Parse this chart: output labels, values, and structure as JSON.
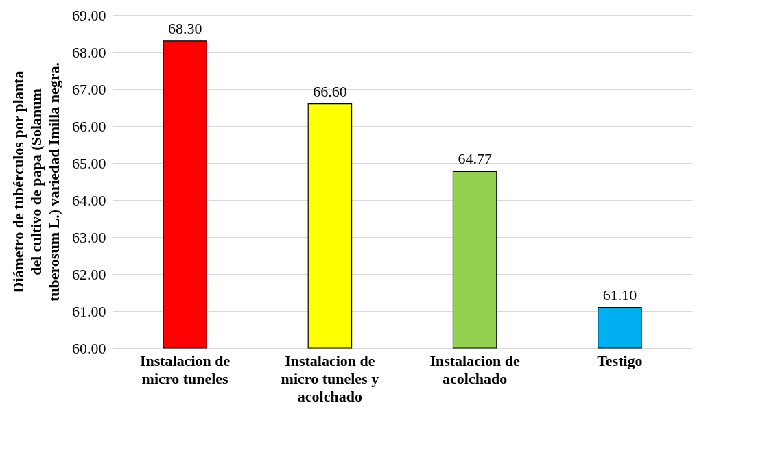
{
  "chart_data": {
    "type": "bar",
    "ylabel": "Diámetro de tubérculos por planta del cultivo de papa (Solanum tuberosum L.) variedad Imilla negra.",
    "categories": [
      "Instalacion de micro tuneles",
      "Instalacion de micro tuneles y acolchado",
      "Instalacion de acolchado",
      "Testigo"
    ],
    "values": [
      68.3,
      66.6,
      64.77,
      61.1
    ],
    "colors": [
      "#ff0000",
      "#ffff00",
      "#92d050",
      "#00b0f0"
    ],
    "value_labels": [
      "68.30",
      "66.60",
      "64.77",
      "61.10"
    ],
    "ylim": [
      60,
      69
    ],
    "yticks": [
      {
        "value": 60,
        "label": "60.00"
      },
      {
        "value": 61,
        "label": "61.00"
      },
      {
        "value": 62,
        "label": "62.00"
      },
      {
        "value": 63,
        "label": "63.00"
      },
      {
        "value": 64,
        "label": "64.00"
      },
      {
        "value": 65,
        "label": "65.00"
      },
      {
        "value": 66,
        "label": "66.00"
      },
      {
        "value": 67,
        "label": "67.00"
      },
      {
        "value": 68,
        "label": "68.00"
      },
      {
        "value": 69,
        "label": "69.00"
      }
    ],
    "grid": "y"
  }
}
